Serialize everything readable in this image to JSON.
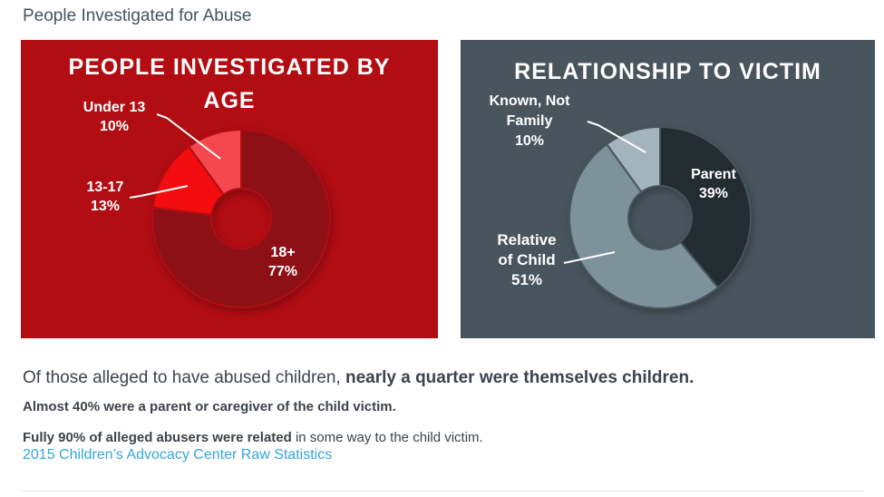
{
  "page": {
    "title": "People Investigated for Abuse"
  },
  "summary": {
    "line1_regular": "Of those alleged to have abused children, ",
    "line1_bold": "nearly a quarter were themselves children.",
    "line2_bold": "Almost 40% were a parent or caregiver of the child victim.",
    "line3_bold": "Fully 90% of alleged abusers were related",
    "line3_regular": " in some way to the child victim.",
    "link_label": "2015 Children’s Advocacy Center Raw Statistics",
    "link_color": "#35a6da"
  },
  "chart_data": [
    {
      "type": "pie",
      "subtype": "donut",
      "title": "PEOPLE INVESTIGATED BY AGE",
      "title_lines": [
        "PEOPLE INVESTIGATED BY",
        "AGE"
      ],
      "background": "#b10d13",
      "categories": [
        "18+",
        "13-17",
        "Under 13"
      ],
      "values": [
        77,
        13,
        10
      ],
      "colors": [
        "#8c1016",
        "#f30d0e",
        "#f4484e"
      ],
      "start_angle_deg": 0,
      "direction": "clockwise",
      "legend_position": "none",
      "callouts": [
        {
          "label": "Under 13",
          "lines": [
            "Under 13",
            "10%"
          ]
        },
        {
          "label": "13-17",
          "lines": [
            "13-17",
            "13%"
          ]
        },
        {
          "label": "18+",
          "lines": [
            "18+",
            "77%"
          ]
        }
      ]
    },
    {
      "type": "pie",
      "subtype": "donut",
      "title": "RELATIONSHIP TO VICTIM",
      "title_lines": [
        "RELATIONSHIP TO VICTIM"
      ],
      "background": "#48555d",
      "categories": [
        "Parent",
        "Relative of Child",
        "Known, Not Family"
      ],
      "values": [
        39,
        51,
        10
      ],
      "colors": [
        "#222c31",
        "#7e929c",
        "#a4b4bc"
      ],
      "start_angle_deg": 0,
      "direction": "clockwise",
      "legend_position": "none",
      "callouts": [
        {
          "label": "Known, Not Family",
          "lines": [
            "Known, Not",
            "Family",
            "10%"
          ]
        },
        {
          "label": "Parent",
          "lines": [
            "Parent",
            "39%"
          ]
        },
        {
          "label": "Relative of Child",
          "lines": [
            "Relative",
            "of Child",
            "51%"
          ]
        }
      ]
    }
  ]
}
